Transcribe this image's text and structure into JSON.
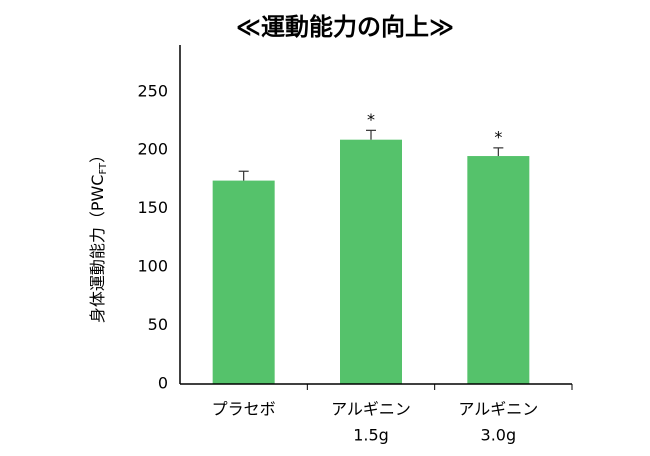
{
  "chart_data": {
    "type": "bar",
    "title": "≪運動能力の向上≫",
    "ylabel": "身体運動能力（PWC",
    "ylabel_subscript": "FT",
    "ylabel_close": "）",
    "categories": [
      [
        "プラセボ"
      ],
      [
        "アルギニン",
        "1.5g"
      ],
      [
        "アルギニン",
        "3.0g"
      ]
    ],
    "values": [
      174,
      209,
      195
    ],
    "errors": [
      8,
      8,
      7
    ],
    "annotations": [
      {
        "index": 1,
        "text": "*"
      },
      {
        "index": 2,
        "text": "*"
      }
    ],
    "color": "#55c26b",
    "ylim": [
      0,
      290
    ],
    "yticks": [
      0,
      50,
      100,
      150,
      200,
      250
    ],
    "grid": false
  }
}
